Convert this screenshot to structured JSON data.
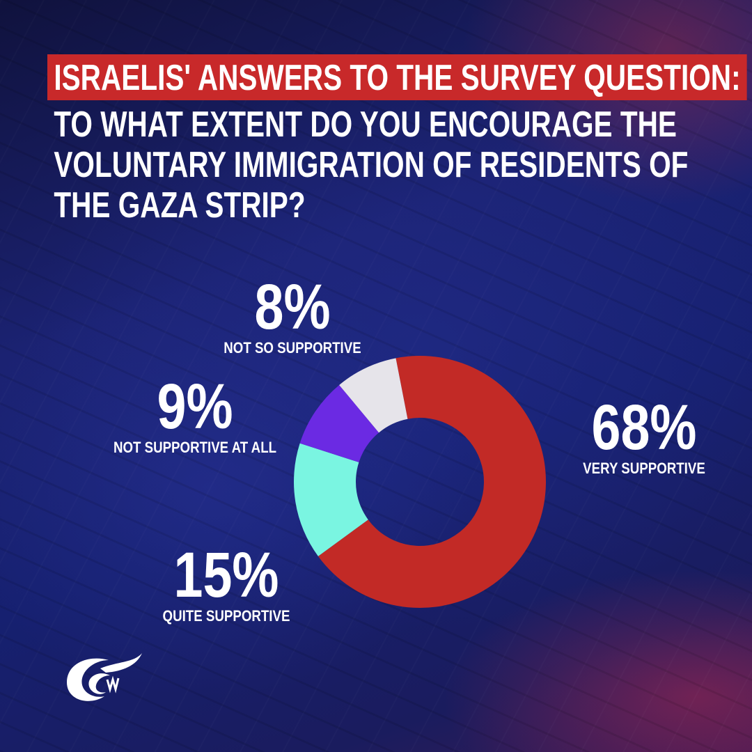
{
  "title": {
    "highlight": "ISRAELIS' ANSWERS TO THE SURVEY QUESTION:",
    "lines": [
      "TO WHAT EXTENT DO YOU ENCOURAGE THE",
      "VOLUNTARY IMMIGRATION OF RESIDENTS OF",
      "THE GAZA STRIP?"
    ]
  },
  "chart_data": {
    "type": "pie",
    "donut": true,
    "slices": [
      {
        "label": "VERY SUPPORTIVE",
        "value": 68,
        "display": "68%",
        "color": "#c22a26"
      },
      {
        "label": "QUITE SUPPORTIVE",
        "value": 15,
        "display": "15%",
        "color": "#7af5e1"
      },
      {
        "label": "NOT SUPPORTIVE AT ALL",
        "value": 9,
        "display": "9%",
        "color": "#6b2ae3"
      },
      {
        "label": "NOT SO SUPPORTIVE",
        "value": 8,
        "display": "8%",
        "color": "#e6e4ea"
      }
    ]
  },
  "colors": {
    "accent": "#c8292a",
    "text": "#ffffff"
  },
  "logo_icon": "al-mayadeen-logo-icon"
}
